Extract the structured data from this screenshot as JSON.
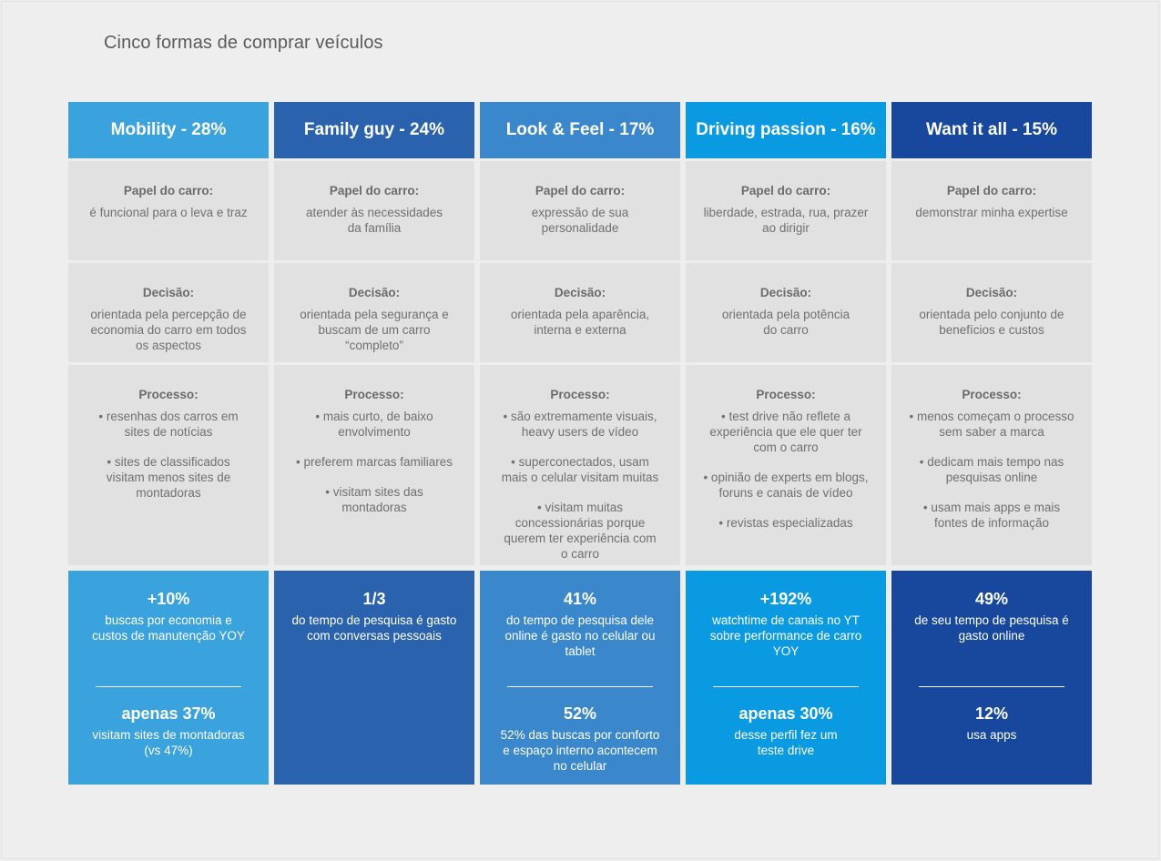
{
  "title": "Cinco formas de comprar veículos",
  "labels": {
    "role": "Papel do carro:",
    "decision": "Decisão:",
    "process": "Processo:"
  },
  "columns": [
    {
      "header": "Mobility - 28%",
      "color": "#3aa2dd",
      "role": "é funcional para o leva e traz",
      "decision": "orientada pela percepção de\neconomia do carro em todos\nos aspectos",
      "process": [
        "• resenhas dos carros em\nsites de notícias",
        "• sites de classificados\nvisitam menos sites de\nmontadoras"
      ],
      "stats": [
        {
          "big": "+10%",
          "small": "buscas por economia e\ncustos de manutenção YOY"
        },
        {
          "big": "apenas 37%",
          "small": "visitam sites de montadoras\n(vs 47%)"
        }
      ]
    },
    {
      "header": "Family guy - 24%",
      "color": "#2b62ad",
      "role": "atender às necessidades\nda família",
      "decision": "orientada pela segurança e\nbuscam de um carro\n“completo”",
      "process": [
        "• mais curto, de baixo\nenvolvimento",
        "• preferem marcas familiares",
        "• visitam sites das\nmontadoras"
      ],
      "stats": [
        {
          "big": "1/3",
          "small": "do tempo de pesquisa é gasto\ncom conversas pessoais"
        }
      ]
    },
    {
      "header": "Look & Feel - 17%",
      "color": "#3a87cc",
      "role": "expressão de sua\npersonalidade",
      "decision": "orientada pela aparência,\ninterna e externa",
      "process": [
        "• são extremamente visuais,\nheavy users de vídeo",
        "• superconectados, usam\nmais o celular visitam muitas",
        "• visitam muitas\nconcessionárias porque\nquerem ter experiência com\no carro"
      ],
      "stats": [
        {
          "big": "41%",
          "small": "do tempo de pesquisa dele\nonline é gasto no celular ou\ntablet"
        },
        {
          "big": "52%",
          "small": "52% das buscas por conforto\ne espaço interno acontecem\nno celular"
        }
      ]
    },
    {
      "header": "Driving passion - 16%",
      "color": "#0a9ae2",
      "role": "liberdade, estrada, rua, prazer\nao dirigir",
      "decision": "orientada pela potência\ndo carro",
      "process": [
        "• test drive não reflete a\nexperiência que ele quer ter\ncom o carro",
        "• opinião de experts em blogs,\nforuns e canais de vídeo",
        "• revistas especializadas"
      ],
      "stats": [
        {
          "big": "+192%",
          "small": "watchtime de canais no YT\nsobre performance de carro\nYOY"
        },
        {
          "big": "apenas 30%",
          "small": "desse perfil fez um\nteste drive"
        }
      ]
    },
    {
      "header": "Want it all - 15%",
      "color": "#17489e",
      "role": "demonstrar minha expertise",
      "decision": "orientada pelo conjunto de\nbenefícios e custos",
      "process": [
        "• menos começam o processo\nsem saber a marca",
        "• dedicam mais tempo nas\npesquisas online",
        "• usam mais apps e mais\nfontes de informação"
      ],
      "stats": [
        {
          "big": "49%",
          "small": "de seu tempo de pesquisa é\ngasto online"
        },
        {
          "big": "12%",
          "small": "usa apps"
        }
      ]
    }
  ]
}
